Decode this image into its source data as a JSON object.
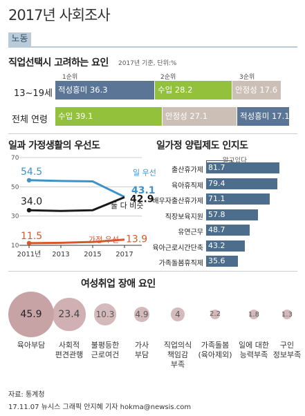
{
  "header": {
    "title": "2017년 사회조사",
    "section": "노동"
  },
  "colors": {
    "blue": "#5a7596",
    "green": "#93c13c",
    "beige": "#cbbfb6",
    "dark": "#1a1a1a",
    "sky": "#3d93c9",
    "orange": "#d9552b",
    "bar": "#4c6d8c",
    "circle": "#c8a3a5"
  },
  "job_factors": {
    "title": "직업선택시 고려하는 요인",
    "note": "2017년 기준, 단위:%",
    "ranks": [
      "1순위",
      "2순위",
      "3순위"
    ],
    "rows": [
      {
        "label": "13~19세",
        "segments": [
          {
            "name": "적성흥미",
            "value": 36.3,
            "color": "#5a7596"
          },
          {
            "name": "수입",
            "value": 28.2,
            "color": "#93c13c"
          },
          {
            "name": "안정성",
            "value": 17.6,
            "color": "#cbbfb6"
          }
        ]
      },
      {
        "label": "전체 연령",
        "segments": [
          {
            "name": "수입",
            "value": 39.1,
            "color": "#93c13c"
          },
          {
            "name": "안정성",
            "value": 27.1,
            "color": "#cbbfb6"
          },
          {
            "name": "적성흥미",
            "value": 17.1,
            "color": "#5a7596"
          }
        ]
      }
    ]
  },
  "chart_data": [
    {
      "type": "line",
      "title": "일과 가정생활의 우선도",
      "x": [
        2011,
        2013,
        2015,
        2017
      ],
      "x_ticks": [
        "2011년",
        "2013",
        "2015",
        "2017"
      ],
      "y_ticks": [
        10,
        30,
        50,
        70
      ],
      "ylim": [
        10,
        70
      ],
      "series": [
        {
          "name": "일 우선",
          "values": [
            54.5,
            54.0,
            53.7,
            43.1
          ],
          "color": "#3d93c9",
          "start_label": "54.5",
          "end_label": "43.1"
        },
        {
          "name": "둘 다 비슷",
          "values": [
            34.0,
            33.5,
            34.0,
            42.9
          ],
          "color": "#1a1a1a",
          "start_label": "34.0",
          "end_label": "42.9"
        },
        {
          "name": "가정 우선",
          "values": [
            11.5,
            11.7,
            12.3,
            13.9
          ],
          "color": "#d9552b",
          "start_label": "11.5",
          "end_label": "13.9"
        }
      ]
    },
    {
      "type": "bar",
      "title": "일가정 양립제도 인지도",
      "value_header": "알고있다",
      "categories": [
        "출산휴가제",
        "육아휴직제",
        "배우자출산휴가제",
        "직장보육지원",
        "유연근무",
        "육아근로시간단축",
        "가족돌봄휴직제"
      ],
      "values": [
        81.7,
        79.4,
        71.1,
        57.8,
        48.7,
        43.2,
        35.6
      ],
      "xlim": [
        0,
        100
      ]
    },
    {
      "type": "bubble",
      "title": "여성취업 장애 요인",
      "categories": [
        "육아부담",
        "사회적\n편견관행",
        "불평등한\n근로여건",
        "가사\n부담",
        "직업의식\n책임감\n부족",
        "가족돌봄\n(육아제외)",
        "일에 대한\n능력부족",
        "구인\n정보부족"
      ],
      "values": [
        45.9,
        23.4,
        10.3,
        4.9,
        4.0,
        2.2,
        1.8,
        1.3
      ]
    }
  ],
  "labels": {
    "work_first": "일 우선",
    "both": "둘 다 비슷",
    "family_first": "가정 우선"
  },
  "footer": {
    "source": "자료: 통계청",
    "credit": "17.11.07 뉴시스 그래픽 안지혜 기자 hokma@newsis.com"
  }
}
